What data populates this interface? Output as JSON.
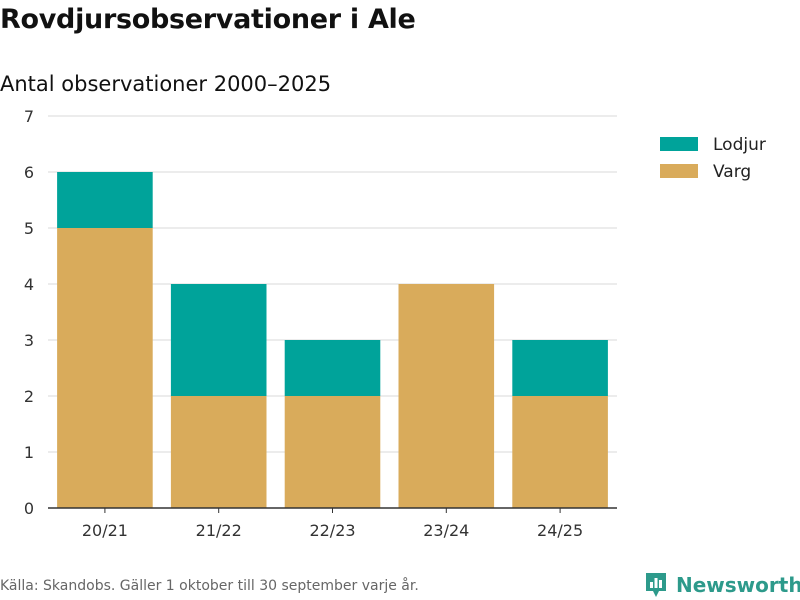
{
  "header": {
    "title": "Rovdjursobservationer i Ale",
    "subtitle": "Antal observationer 2000–2025"
  },
  "footer": {
    "source_note": "Källa: Skandobs. Gäller 1 oktober till 30 september varje år.",
    "brand_name": "Newsworthy",
    "brand_icon": "bar-chart-pin-icon"
  },
  "colors": {
    "lodjur": "#00a39a",
    "varg": "#d9ab5b",
    "grid": "#d9d9d9",
    "axis": "#333333",
    "brand": "#2d9a8b"
  },
  "chart_data": {
    "type": "bar",
    "stacked": true,
    "title": "",
    "xlabel": "",
    "ylabel": "",
    "categories": [
      "20/21",
      "21/22",
      "22/23",
      "23/24",
      "24/25"
    ],
    "series": [
      {
        "name": "Varg",
        "values": [
          5,
          2,
          2,
          4,
          2
        ],
        "color": "#d9ab5b"
      },
      {
        "name": "Lodjur",
        "values": [
          1,
          2,
          1,
          0,
          1
        ],
        "color": "#00a39a"
      }
    ],
    "ylim": [
      0,
      7
    ],
    "yticks": [
      0,
      1,
      2,
      3,
      4,
      5,
      6,
      7
    ],
    "grid": true,
    "legend": {
      "position": "top-right",
      "entries": [
        "Lodjur",
        "Varg"
      ]
    }
  }
}
